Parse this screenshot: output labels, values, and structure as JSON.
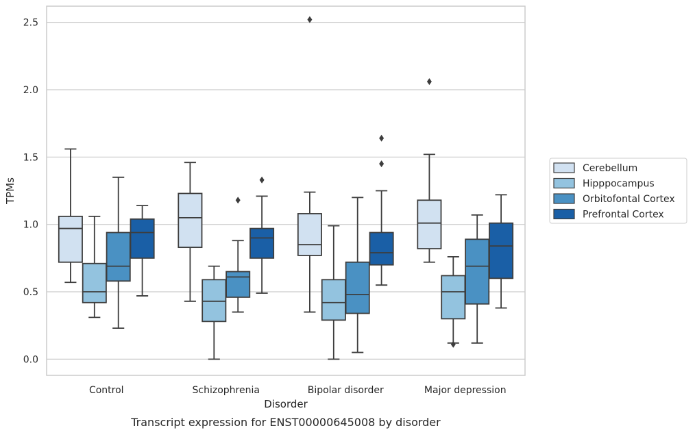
{
  "chart_data": {
    "type": "box",
    "xlabel": "Disorder",
    "ylabel": "TPMs",
    "caption": "Transcript expression for ENST00000645008 by disorder",
    "ylim": [
      -0.12,
      2.62
    ],
    "yticks": [
      0.0,
      0.5,
      1.0,
      1.5,
      2.0,
      2.5
    ],
    "ytick_labels": [
      "0.0",
      "0.5",
      "1.0",
      "1.5",
      "2.0",
      "2.5"
    ],
    "grid": "horizontal",
    "legend_position": "right",
    "categories": [
      "Control",
      "Schizophrenia",
      "Bipolar disorder",
      "Major depression"
    ],
    "series": [
      {
        "name": "Cerebellum",
        "color": "#d1e1f1",
        "boxes": [
          {
            "min": 0.57,
            "q1": 0.72,
            "median": 0.97,
            "q3": 1.06,
            "max": 1.56,
            "outliers": []
          },
          {
            "min": 0.43,
            "q1": 0.83,
            "median": 1.05,
            "q3": 1.23,
            "max": 1.46,
            "outliers": []
          },
          {
            "min": 0.35,
            "q1": 0.77,
            "median": 0.85,
            "q3": 1.08,
            "max": 1.24,
            "outliers": [
              2.52
            ]
          },
          {
            "min": 0.72,
            "q1": 0.82,
            "median": 1.01,
            "q3": 1.18,
            "max": 1.52,
            "outliers": [
              2.06
            ]
          }
        ]
      },
      {
        "name": "Hipppocampus",
        "color": "#93c3df",
        "boxes": [
          {
            "min": 0.31,
            "q1": 0.42,
            "median": 0.5,
            "q3": 0.71,
            "max": 1.06,
            "outliers": []
          },
          {
            "min": 0.0,
            "q1": 0.28,
            "median": 0.43,
            "q3": 0.59,
            "max": 0.69,
            "outliers": []
          },
          {
            "min": 0.0,
            "q1": 0.29,
            "median": 0.42,
            "q3": 0.59,
            "max": 0.99,
            "outliers": []
          },
          {
            "min": 0.12,
            "q1": 0.3,
            "median": 0.5,
            "q3": 0.62,
            "max": 0.76,
            "outliers": [
              0.11
            ]
          }
        ]
      },
      {
        "name": "Orbitofontal Cortex",
        "color": "#4a91c3",
        "boxes": [
          {
            "min": 0.23,
            "q1": 0.58,
            "median": 0.69,
            "q3": 0.94,
            "max": 1.35,
            "outliers": []
          },
          {
            "min": 0.35,
            "q1": 0.46,
            "median": 0.61,
            "q3": 0.65,
            "max": 0.88,
            "outliers": [
              1.18
            ]
          },
          {
            "min": 0.05,
            "q1": 0.34,
            "median": 0.48,
            "q3": 0.72,
            "max": 1.2,
            "outliers": []
          },
          {
            "min": 0.12,
            "q1": 0.41,
            "median": 0.69,
            "q3": 0.89,
            "max": 1.07,
            "outliers": []
          }
        ]
      },
      {
        "name": "Prefrontal Cortex",
        "color": "#1a5fa6",
        "boxes": [
          {
            "min": 0.47,
            "q1": 0.75,
            "median": 0.94,
            "q3": 1.04,
            "max": 1.14,
            "outliers": []
          },
          {
            "min": 0.49,
            "q1": 0.75,
            "median": 0.9,
            "q3": 0.97,
            "max": 1.21,
            "outliers": [
              1.33
            ]
          },
          {
            "min": 0.55,
            "q1": 0.7,
            "median": 0.79,
            "q3": 0.94,
            "max": 1.25,
            "outliers": [
              1.45,
              1.64
            ]
          },
          {
            "min": 0.38,
            "q1": 0.6,
            "median": 0.84,
            "q3": 1.01,
            "max": 1.22,
            "outliers": []
          }
        ]
      }
    ]
  }
}
